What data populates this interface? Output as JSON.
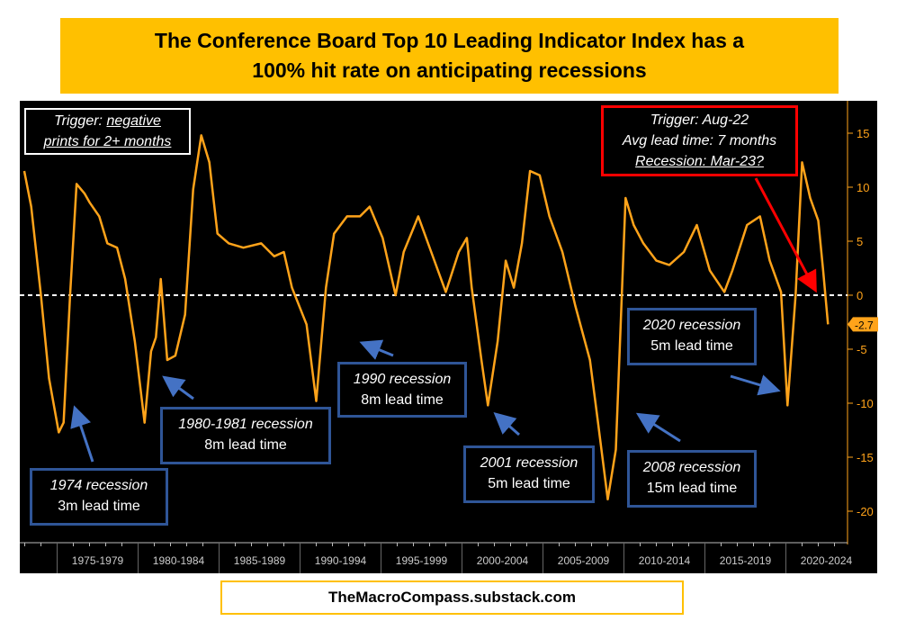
{
  "title": "The Conference Board Top 10 Leading Indicator Index has a\n100% hit rate on anticipating recessions",
  "footer": "TheMacroCompass.substack.com",
  "trigger_box": {
    "line1_prefix": "Trigger: ",
    "line1_u": "negative",
    "line2": "prints for 2+ months"
  },
  "red_box": {
    "line1": "Trigger: Aug-22",
    "line2": "Avg lead time: 7 months",
    "line3": "Recession: Mar-23?"
  },
  "annotations": [
    {
      "title": "1974 recession",
      "lead": "3m lead time"
    },
    {
      "title": "1980-1981 recession",
      "lead": "8m lead time"
    },
    {
      "title": "1990 recession",
      "lead": "8m lead time"
    },
    {
      "title": "2001 recession",
      "lead": "5m lead time"
    },
    {
      "title": "2008 recession",
      "lead": "15m lead time"
    },
    {
      "title": "2020 recession",
      "lead": "5m lead time"
    }
  ],
  "colors": {
    "line": "#FFA31A",
    "annot": "#2F5597",
    "arrow_blue": "#4472C4",
    "red": "#FF0000",
    "title_bg": "#FFC000"
  },
  "chart_data": {
    "type": "line",
    "title": "The Conference Board Top 10 Leading Indicator Index",
    "ylim": [
      -22,
      17
    ],
    "yticks": [
      15,
      10,
      5,
      0,
      -5,
      -10,
      -15,
      -20
    ],
    "xlim": [
      1972.7,
      2023.7
    ],
    "xtick_labels": [
      "1975-1979",
      "1980-1984",
      "1985-1989",
      "1990-1994",
      "1995-1999",
      "2000-2004",
      "2005-2009",
      "2010-2014",
      "2015-2019",
      "2020-2024"
    ],
    "xtick_starts": [
      1975,
      1980,
      1985,
      1990,
      1995,
      2000,
      2005,
      2010,
      2015,
      2020
    ],
    "last_value_label": "-2.7",
    "reference_line": 0,
    "x": [
      1972.97,
      1973.4,
      1974,
      1974.5,
      1975.1,
      1975.4,
      1975.8,
      1976.2,
      1976.7,
      1977,
      1977.6,
      1978.1,
      1978.7,
      1979.2,
      1979.8,
      1980.4,
      1980.8,
      1981.1,
      1981.4,
      1981.8,
      1982.3,
      1982.9,
      1983.4,
      1983.9,
      1984.4,
      1984.9,
      1985.6,
      1986.5,
      1987.6,
      1988.4,
      1989,
      1989.5,
      1990.4,
      1991,
      1991.6,
      1992.1,
      1992.9,
      1993.7,
      1994.3,
      1995.1,
      1995.9,
      1996.4,
      1997.3,
      1998.1,
      1999,
      1999.8,
      2000.3,
      2000.6,
      2001.2,
      2001.6,
      2002.2,
      2002.7,
      2003.2,
      2003.7,
      2004.2,
      2004.8,
      2005.4,
      2006.2,
      2007,
      2007.9,
      2008.4,
      2009,
      2009.5,
      2010.1,
      2010.6,
      2011.2,
      2012,
      2012.8,
      2013.7,
      2014.5,
      2015.3,
      2016.2,
      2016.7,
      2017.6,
      2018.4,
      2019,
      2019.7,
      2020.1,
      2020.6,
      2021,
      2021.5,
      2022,
      2022.3,
      2022.6
    ],
    "y": [
      11.5,
      8.2,
      0,
      -7.7,
      -12.7,
      -11.8,
      0,
      10.3,
      9.4,
      8.6,
      7.3,
      4.8,
      4.4,
      1.5,
      -4.3,
      -11.8,
      -5.2,
      -3.9,
      1.5,
      -6,
      -5.6,
      -1.8,
      9.8,
      14.8,
      12.3,
      5.7,
      4.8,
      4.4,
      4.8,
      3.6,
      4,
      0.7,
      -2.7,
      -9.8,
      0.7,
      5.7,
      7.3,
      7.3,
      8.2,
      5.3,
      0,
      4,
      7.3,
      4,
      0.3,
      4,
      5.3,
      0.7,
      -6,
      -10.2,
      -4.3,
      3.2,
      0.7,
      4.8,
      11.5,
      11.1,
      7.3,
      4,
      -1,
      -6,
      -11.8,
      -18.9,
      -14.3,
      9,
      6.5,
      4.8,
      3.2,
      2.8,
      4,
      6.5,
      2.3,
      0.3,
      2.3,
      6.5,
      7.3,
      3.2,
      0.3,
      -10.2,
      0,
      12.3,
      9,
      6.9,
      2.3,
      -2.7
    ]
  }
}
